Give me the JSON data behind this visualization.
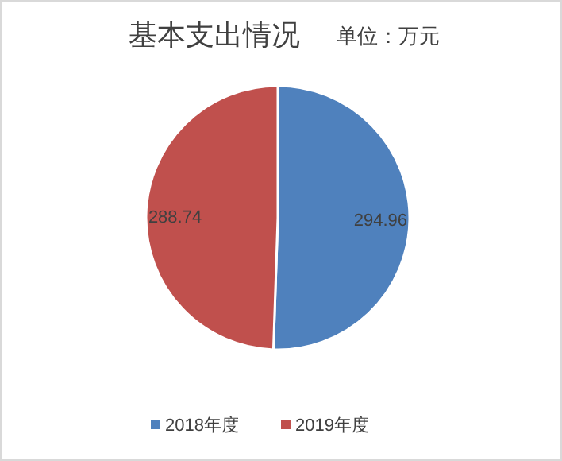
{
  "chart_data": {
    "type": "pie",
    "title": "基本支出情况",
    "subtitle": "单位：万元",
    "categories": [
      "2018年度",
      "2019年度"
    ],
    "values": [
      294.96,
      288.74
    ],
    "colors": [
      "#4f81bd",
      "#c0504d"
    ],
    "data_labels": true,
    "legend": "bottom"
  }
}
